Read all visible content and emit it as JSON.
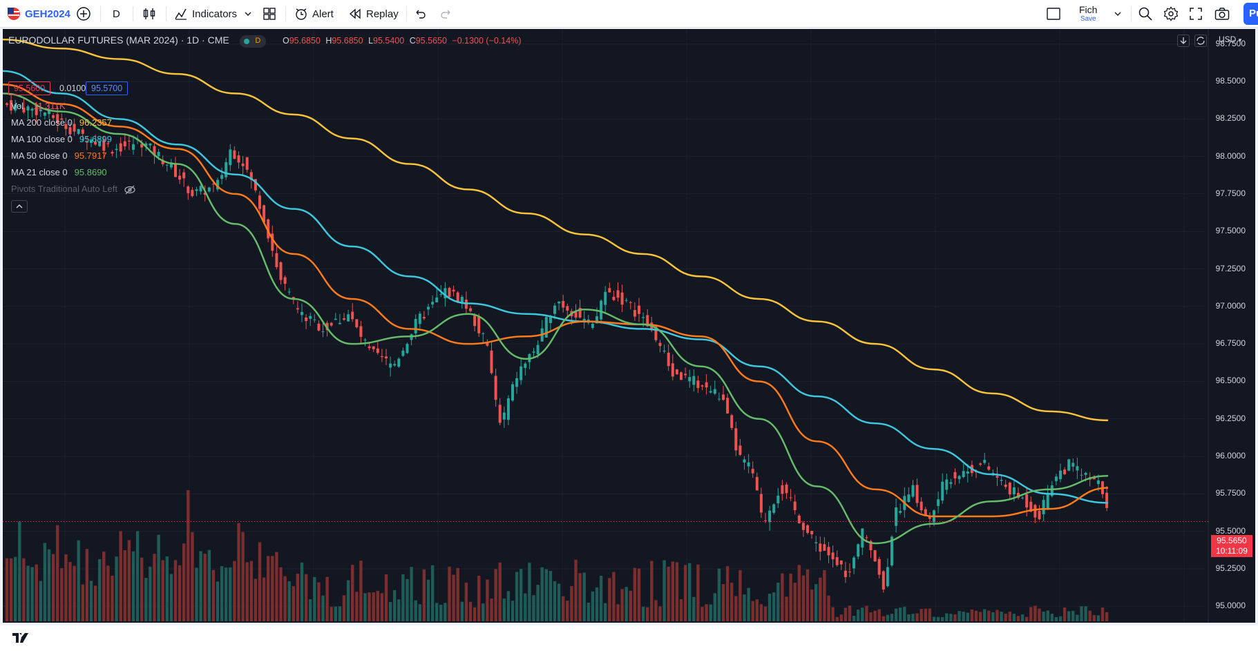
{
  "toolbar": {
    "symbol": "GEH2024",
    "interval": "D",
    "indicators_label": "Indicators",
    "alert_label": "Alert",
    "replay_label": "Replay",
    "layout_name": "Fich",
    "layout_sub": "Save",
    "publish_label": "Pu"
  },
  "header": {
    "title": "EURODOLLAR FUTURES (MAR 2024) · 1D · CME",
    "status_letter": "D",
    "ohlc": {
      "o_label": "O",
      "o": "95.6850",
      "h_label": "H",
      "h": "95.6850",
      "l_label": "L",
      "l": "95.5400",
      "c_label": "C",
      "c": "95.5650",
      "change": "−0.1300 (−0.14%)"
    },
    "bid": "95.5600",
    "spread": "0.0100",
    "ask": "95.5700"
  },
  "legend": {
    "vol_label": "Vol",
    "vol_value": "11.311K",
    "ma200_label": "MA 200 close 0",
    "ma200_value": "96.2357",
    "ma100_label": "MA 100 close 0",
    "ma100_value": "95.6899",
    "ma50_label": "MA 50 close 0",
    "ma50_value": "95.7917",
    "ma21_label": "MA 21 close 0",
    "ma21_value": "95.8690",
    "pivots_label": "Pivots Traditional Auto Left"
  },
  "price_axis": {
    "currency": "USD",
    "ticks": [
      "98.7500",
      "98.5000",
      "98.2500",
      "98.0000",
      "97.7500",
      "97.5000",
      "97.2500",
      "97.0000",
      "96.7500",
      "96.5000",
      "96.2500",
      "96.0000",
      "95.7500",
      "95.5000",
      "95.2500",
      "95.0000"
    ],
    "last_price": "95.5650",
    "countdown": "10:11:09"
  },
  "colors": {
    "ma200": "#f9c23c",
    "ma100": "#3ec6dd",
    "ma50": "#ff7a1a",
    "ma21": "#66bb6a",
    "up": "#26a69a",
    "down": "#ef5350",
    "accent": "#2962ff"
  },
  "chart_data": {
    "type": "candlestick",
    "y_range": [
      94.9,
      98.85
    ],
    "ma200": [
      98.78,
      98.72,
      98.65,
      98.55,
      98.42,
      98.28,
      98.12,
      97.95,
      97.78,
      97.62,
      97.48,
      97.35,
      97.2,
      97.05,
      96.9,
      96.75,
      96.58,
      96.42,
      96.3,
      96.24
    ],
    "ma100": [
      98.57,
      98.42,
      98.25,
      98.08,
      97.88,
      97.65,
      97.4,
      97.2,
      97.02,
      96.95,
      96.9,
      96.85,
      96.78,
      96.6,
      96.4,
      96.22,
      96.05,
      95.88,
      95.75,
      95.69
    ],
    "ma50": [
      98.48,
      98.35,
      98.2,
      98.05,
      97.75,
      97.35,
      97.05,
      96.85,
      96.75,
      96.8,
      96.9,
      96.88,
      96.8,
      96.5,
      96.1,
      95.78,
      95.6,
      95.6,
      95.65,
      95.79
    ],
    "ma21": [
      98.42,
      98.3,
      98.15,
      97.95,
      97.55,
      97.05,
      96.75,
      96.8,
      96.95,
      96.65,
      96.98,
      96.88,
      96.6,
      96.25,
      95.8,
      95.42,
      95.55,
      95.7,
      95.78,
      95.87
    ],
    "volume_peak": "11.311K"
  }
}
